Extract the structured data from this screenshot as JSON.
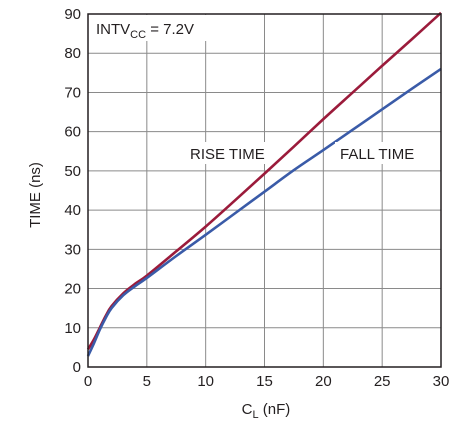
{
  "chart_data": {
    "type": "line",
    "xlabel": "C",
    "xlabel_sub": "L",
    "xlabel_unit": " (nF)",
    "ylabel": "TIME (ns)",
    "xlim": [
      0,
      30
    ],
    "ylim": [
      0,
      90
    ],
    "x_ticks": [
      0,
      5,
      10,
      15,
      20,
      25,
      30
    ],
    "y_ticks": [
      0,
      10,
      20,
      30,
      40,
      50,
      60,
      70,
      80,
      90
    ],
    "grid": true,
    "condition": {
      "prefix": "INTV",
      "sub": "CC",
      "suffix": " = 7.2V"
    },
    "series": [
      {
        "name": "RISE TIME",
        "color": "#9b1b3b",
        "x": [
          0,
          0.5,
          1,
          1.5,
          2,
          3,
          4,
          5,
          7.5,
          10,
          12.5,
          15,
          17.5,
          20,
          22.5,
          25,
          27.5,
          30
        ],
        "y": [
          4.5,
          7,
          10,
          13,
          15.5,
          18.8,
          21.2,
          23.3,
          29.5,
          35.8,
          42.5,
          49.3,
          56.2,
          63.2,
          70,
          76.8,
          83.5,
          90.3
        ]
      },
      {
        "name": "FALL TIME",
        "color": "#3a5ba8",
        "x": [
          0,
          0.5,
          1,
          1.5,
          2,
          3,
          4,
          5,
          7.5,
          10,
          12.5,
          15,
          17.5,
          20,
          22.5,
          25,
          27.5,
          30
        ],
        "y": [
          2.8,
          6,
          9.5,
          12.5,
          15,
          18.3,
          20.6,
          22.7,
          28.3,
          33.7,
          39.2,
          44.7,
          50.2,
          55.3,
          60.5,
          65.7,
          70.9,
          76
        ]
      }
    ]
  }
}
